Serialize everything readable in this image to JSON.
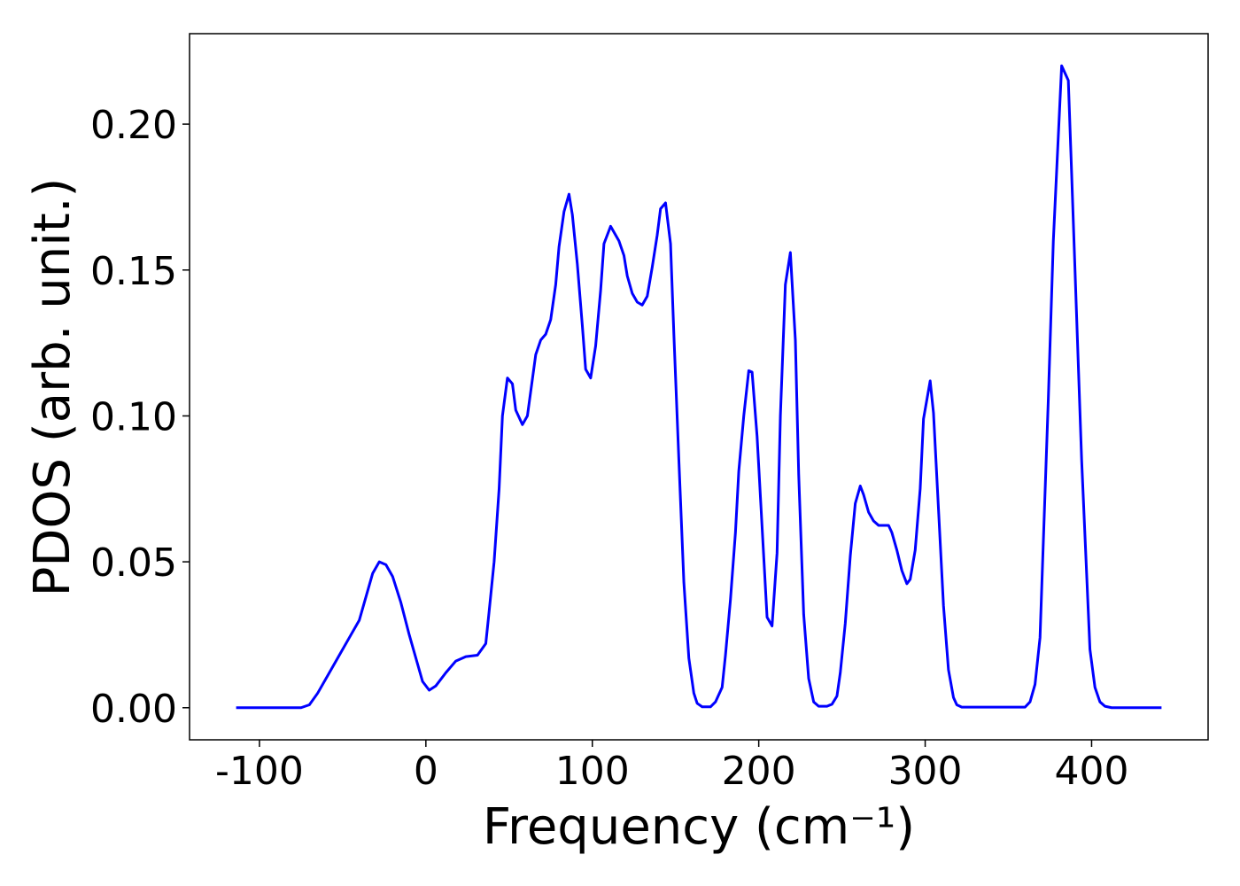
{
  "chart_data": {
    "type": "line",
    "xlabel": "Frequency (cm⁻¹)",
    "ylabel": "PDOS (arb. unit.)",
    "color": "#0000ff",
    "x": [
      -114,
      -75,
      -70,
      -65,
      -55,
      -45,
      -40,
      -32,
      -28,
      -24,
      -20,
      -15,
      -10,
      -5,
      -2,
      2,
      6,
      12,
      18,
      24,
      31,
      36,
      38,
      41,
      44,
      46,
      49,
      52,
      54,
      58,
      61,
      66,
      69,
      72,
      75,
      78,
      80,
      83,
      86,
      88,
      91,
      94,
      96,
      99,
      102,
      105,
      107,
      111,
      113,
      116,
      119,
      121,
      124,
      127,
      130,
      133,
      136,
      139,
      141,
      144,
      147,
      149,
      152,
      155,
      158,
      161,
      163,
      166,
      171,
      174,
      178,
      180,
      183,
      186,
      188,
      191,
      194,
      196,
      199,
      202,
      205,
      208,
      211,
      213,
      216,
      219,
      222,
      224,
      227,
      230,
      233,
      236,
      241,
      244,
      247,
      249,
      252,
      255,
      258,
      261,
      263,
      266,
      269,
      272,
      278,
      280,
      283,
      286,
      289,
      291,
      294,
      297,
      299,
      303,
      305,
      308,
      311,
      314,
      317,
      319,
      322,
      360,
      363,
      366,
      369,
      371,
      374,
      377,
      380,
      382,
      386,
      388,
      391,
      394,
      397,
      399,
      402,
      405,
      408,
      412,
      442
    ],
    "values": [
      0,
      0,
      0.001,
      0.005,
      0.015,
      0.025,
      0.03,
      0.046,
      0.05,
      0.049,
      0.045,
      0.036,
      0.025,
      0.015,
      0.009,
      0.006,
      0.0075,
      0.012,
      0.016,
      0.0175,
      0.018,
      0.022,
      0.033,
      0.05,
      0.075,
      0.1,
      0.113,
      0.111,
      0.102,
      0.097,
      0.1,
      0.121,
      0.126,
      0.128,
      0.133,
      0.145,
      0.158,
      0.17,
      0.176,
      0.169,
      0.152,
      0.131,
      0.116,
      0.113,
      0.124,
      0.143,
      0.159,
      0.165,
      0.163,
      0.16,
      0.155,
      0.148,
      0.142,
      0.139,
      0.138,
      0.141,
      0.151,
      0.162,
      0.171,
      0.173,
      0.159,
      0.128,
      0.085,
      0.043,
      0.017,
      0.005,
      0.0015,
      0.0003,
      0.0003,
      0.002,
      0.007,
      0.018,
      0.037,
      0.06,
      0.081,
      0.1,
      0.1155,
      0.115,
      0.093,
      0.062,
      0.031,
      0.028,
      0.053,
      0.1,
      0.145,
      0.156,
      0.126,
      0.08,
      0.032,
      0.01,
      0.002,
      0.0005,
      0.0005,
      0.0012,
      0.004,
      0.012,
      0.029,
      0.052,
      0.07,
      0.076,
      0.073,
      0.067,
      0.064,
      0.0625,
      0.0625,
      0.06,
      0.054,
      0.047,
      0.0425,
      0.044,
      0.054,
      0.075,
      0.099,
      0.112,
      0.101,
      0.068,
      0.035,
      0.013,
      0.0035,
      0.001,
      0.0002,
      0.0002,
      0.002,
      0.008,
      0.024,
      0.057,
      0.106,
      0.16,
      0.196,
      0.22,
      0.215,
      0.183,
      0.134,
      0.085,
      0.046,
      0.02,
      0.007,
      0.002,
      0.0005,
      0,
      0
    ],
    "xlim": [
      -142,
      470
    ],
    "ylim": [
      -0.011,
      0.231
    ],
    "xticks": [
      -100,
      0,
      100,
      200,
      300,
      400
    ],
    "yticks": [
      {
        "value": 0,
        "label": "0.00"
      },
      {
        "value": 0.05,
        "label": "0.05"
      },
      {
        "value": 0.1,
        "label": "0.10"
      },
      {
        "value": 0.15,
        "label": "0.15"
      },
      {
        "value": 0.2,
        "label": "0.20"
      }
    ],
    "grid": false
  }
}
